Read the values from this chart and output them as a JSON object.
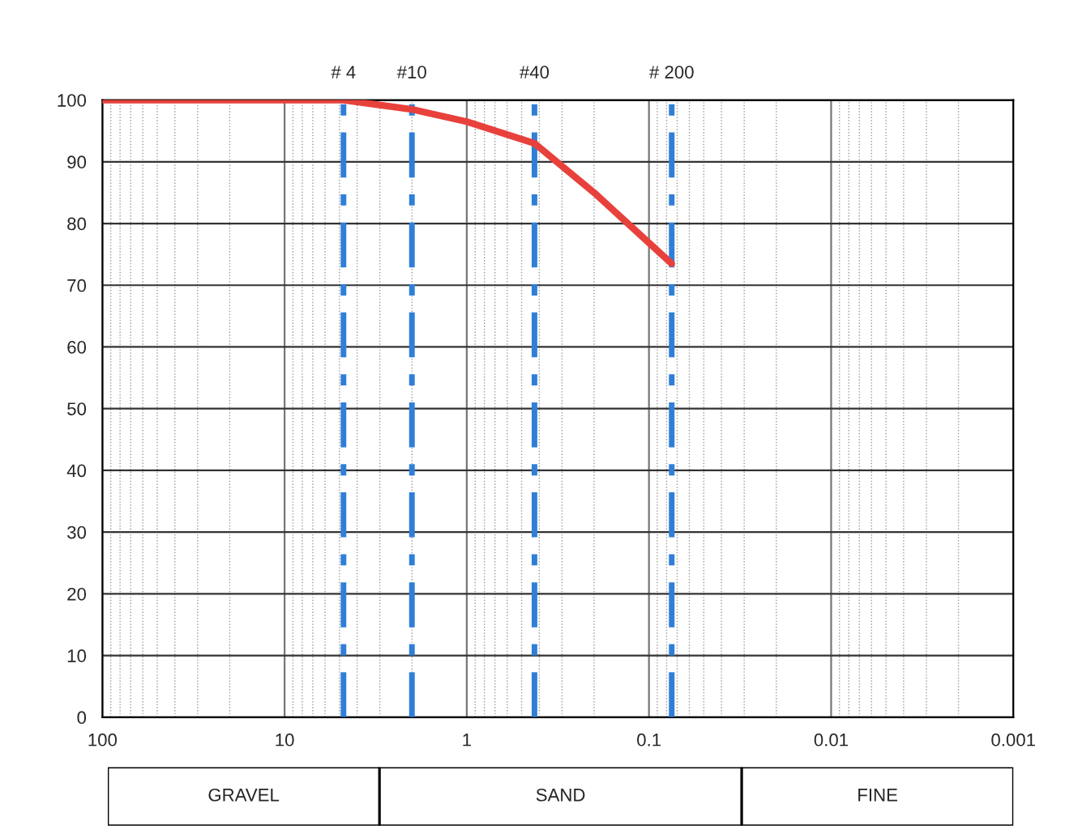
{
  "chart_data": {
    "type": "line",
    "x": [
      100,
      4.75,
      2,
      1,
      0.425,
      0.2,
      0.075
    ],
    "series": [
      {
        "color": "#e8413c",
        "values": [
          100,
          100,
          98.5,
          96.5,
          93,
          85,
          73.5
        ]
      }
    ],
    "xlim": [
      100,
      0.001
    ],
    "xticks": [
      100,
      10,
      1,
      0.1,
      0.01,
      0.001
    ],
    "ylim": [
      0,
      100
    ],
    "yticks": [
      0,
      10,
      20,
      30,
      40,
      50,
      60,
      70,
      80,
      90,
      100
    ],
    "log": "x",
    "grid": true,
    "marker": "none",
    "line_style": "solid",
    "ref_lines": [
      {
        "axis": "x",
        "value": 4.75,
        "color": "#2f7fd8",
        "line_style": "dashed"
      },
      {
        "axis": "x",
        "value": 2,
        "color": "#2f7fd8",
        "line_style": "dashed"
      },
      {
        "axis": "x",
        "value": 0.425,
        "color": "#2f7fd8",
        "line_style": "dashed"
      },
      {
        "axis": "x",
        "value": 0.075,
        "color": "#2f7fd8",
        "line_style": "dashed"
      }
    ],
    "annotations": [
      {
        "text": "# 4",
        "x": 4.75,
        "y": 100
      },
      {
        "text": "#10",
        "x": 2,
        "y": 100
      },
      {
        "text": "#40",
        "x": 0.425,
        "y": 100
      },
      {
        "text": "# 200",
        "x": 0.075,
        "y": 100
      },
      "GRAVEL",
      "SAND",
      "FINE"
    ]
  }
}
